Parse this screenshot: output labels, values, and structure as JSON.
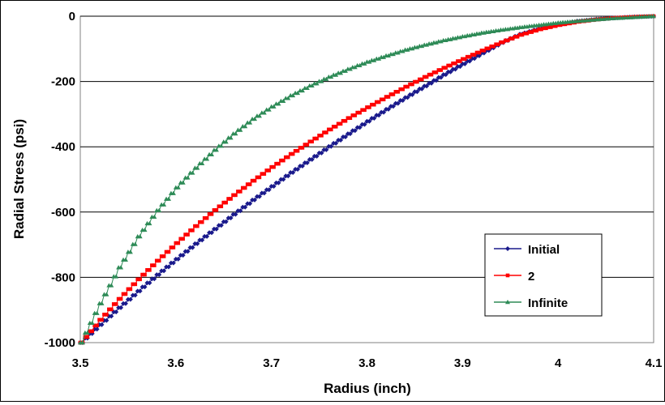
{
  "chart_data": {
    "type": "line",
    "title": "",
    "xlabel": "Radius (inch)",
    "ylabel": "Radial Stress (psi)",
    "xlim": [
      3.5,
      4.1
    ],
    "ylim": [
      -1000,
      0
    ],
    "xticks": [
      "3.5",
      "3.6",
      "3.7",
      "3.8",
      "3.9",
      "4",
      "4.1"
    ],
    "yticks": [
      "0",
      "-200",
      "-400",
      "-600",
      "-800",
      "-1000"
    ],
    "grid": "horizontal",
    "legend_position": "lower-right",
    "x": [
      3.5,
      3.52,
      3.54,
      3.56,
      3.58,
      3.6,
      3.62,
      3.64,
      3.66,
      3.68,
      3.7,
      3.72,
      3.74,
      3.76,
      3.78,
      3.8,
      3.82,
      3.84,
      3.86,
      3.88,
      3.9,
      3.92,
      3.94,
      3.96,
      3.98,
      4.0,
      4.02,
      4.04,
      4.06,
      4.08,
      4.1
    ],
    "series": [
      {
        "name": "Initial",
        "color": "#1a1a8c",
        "marker": "diamond",
        "values": [
          -1000,
          -945,
          -893,
          -842,
          -792,
          -744,
          -697,
          -652,
          -607,
          -563,
          -521,
          -479,
          -439,
          -399,
          -360,
          -322,
          -285,
          -249,
          -214,
          -179,
          -146,
          -113,
          -81,
          -55,
          -38,
          -25,
          -15,
          -9,
          -5,
          -2,
          0
        ]
      },
      {
        "name": "2",
        "color": "#ff0000",
        "marker": "square",
        "values": [
          -1000,
          -930,
          -866,
          -806,
          -749,
          -695,
          -643,
          -594,
          -548,
          -504,
          -462,
          -422,
          -384,
          -347,
          -312,
          -279,
          -247,
          -216,
          -186,
          -158,
          -131,
          -105,
          -80,
          -57,
          -40,
          -27,
          -17,
          -10,
          -5,
          -2,
          0
        ]
      },
      {
        "name": "Infinite",
        "color": "#2e8b57",
        "marker": "triangle",
        "values": [
          -1000,
          -880,
          -770,
          -675,
          -595,
          -525,
          -465,
          -410,
          -360,
          -315,
          -277,
          -243,
          -213,
          -186,
          -162,
          -140,
          -121,
          -103,
          -88,
          -74,
          -62,
          -51,
          -42,
          -34,
          -27,
          -20,
          -15,
          -10,
          -6,
          -3,
          0
        ]
      }
    ]
  }
}
